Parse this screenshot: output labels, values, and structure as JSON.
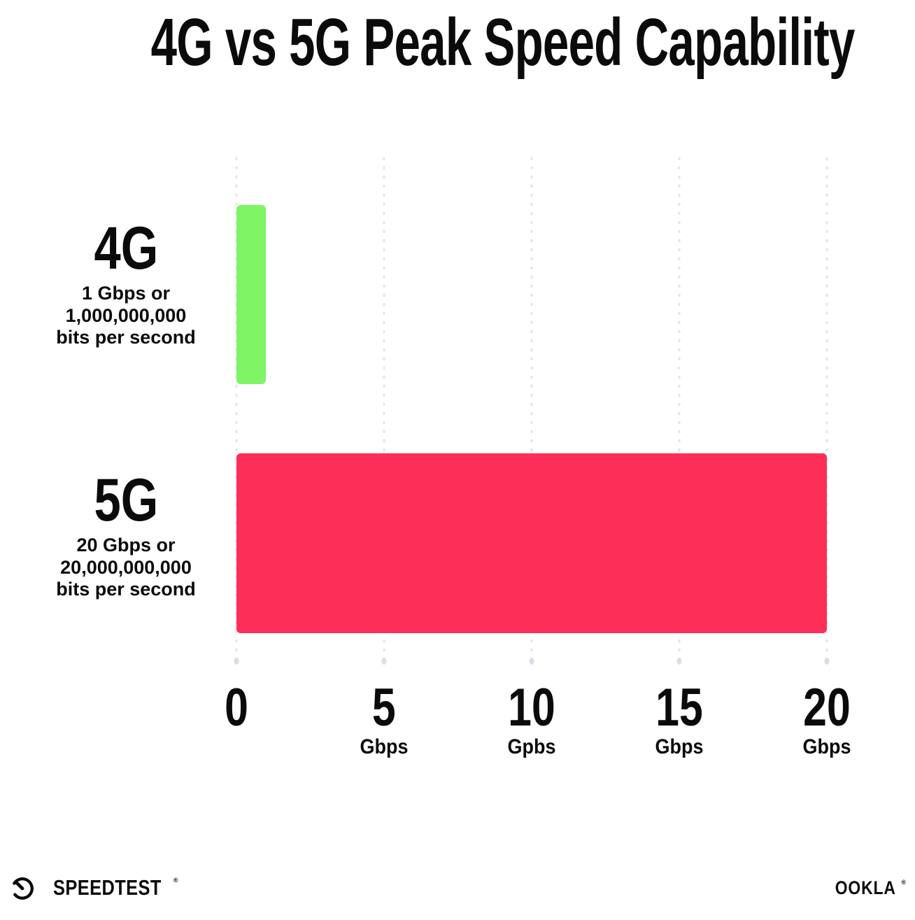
{
  "title": "4G vs 5G Peak Speed Capability",
  "chart_data": {
    "type": "bar",
    "orientation": "horizontal",
    "title": "4G vs 5G Peak Speed Capability",
    "categories": [
      "4G",
      "5G"
    ],
    "values": [
      1,
      20
    ],
    "value_unit": "Gbps",
    "xlim": [
      0,
      20
    ],
    "grid": "vertical-dotted-lines",
    "legend": "none",
    "bars": [
      {
        "label": "4G",
        "value": 1,
        "color": "#7df564",
        "description_lines": [
          "1 Gbps or",
          "1,000,000,000",
          "bits per second"
        ]
      },
      {
        "label": "5G",
        "value": 20,
        "color": "#fd2e57",
        "description_lines": [
          "20 Gbps or",
          "20,000,000,000",
          "bits per second"
        ]
      }
    ],
    "x_ticks": [
      {
        "value": 0,
        "label": "0",
        "unit": ""
      },
      {
        "value": 5,
        "label": "5",
        "unit": "Gbps"
      },
      {
        "value": 10,
        "label": "10",
        "unit": "Gpbs"
      },
      {
        "value": 15,
        "label": "15",
        "unit": "Gbps"
      },
      {
        "value": 20,
        "label": "20",
        "unit": "Gbps"
      }
    ]
  },
  "colors": {
    "background": "#ffffff",
    "text": "#0b0b0c",
    "bar_4g": "#7df564",
    "bar_5g": "#fd2e57",
    "gridline": "#e3e3ee"
  },
  "footer": {
    "speedtest_icon": "gauge-icon",
    "speedtest_label": "SPEEDTEST",
    "speedtest_mark": "®",
    "ookla_label": "OOKLA",
    "ookla_mark": "®"
  }
}
